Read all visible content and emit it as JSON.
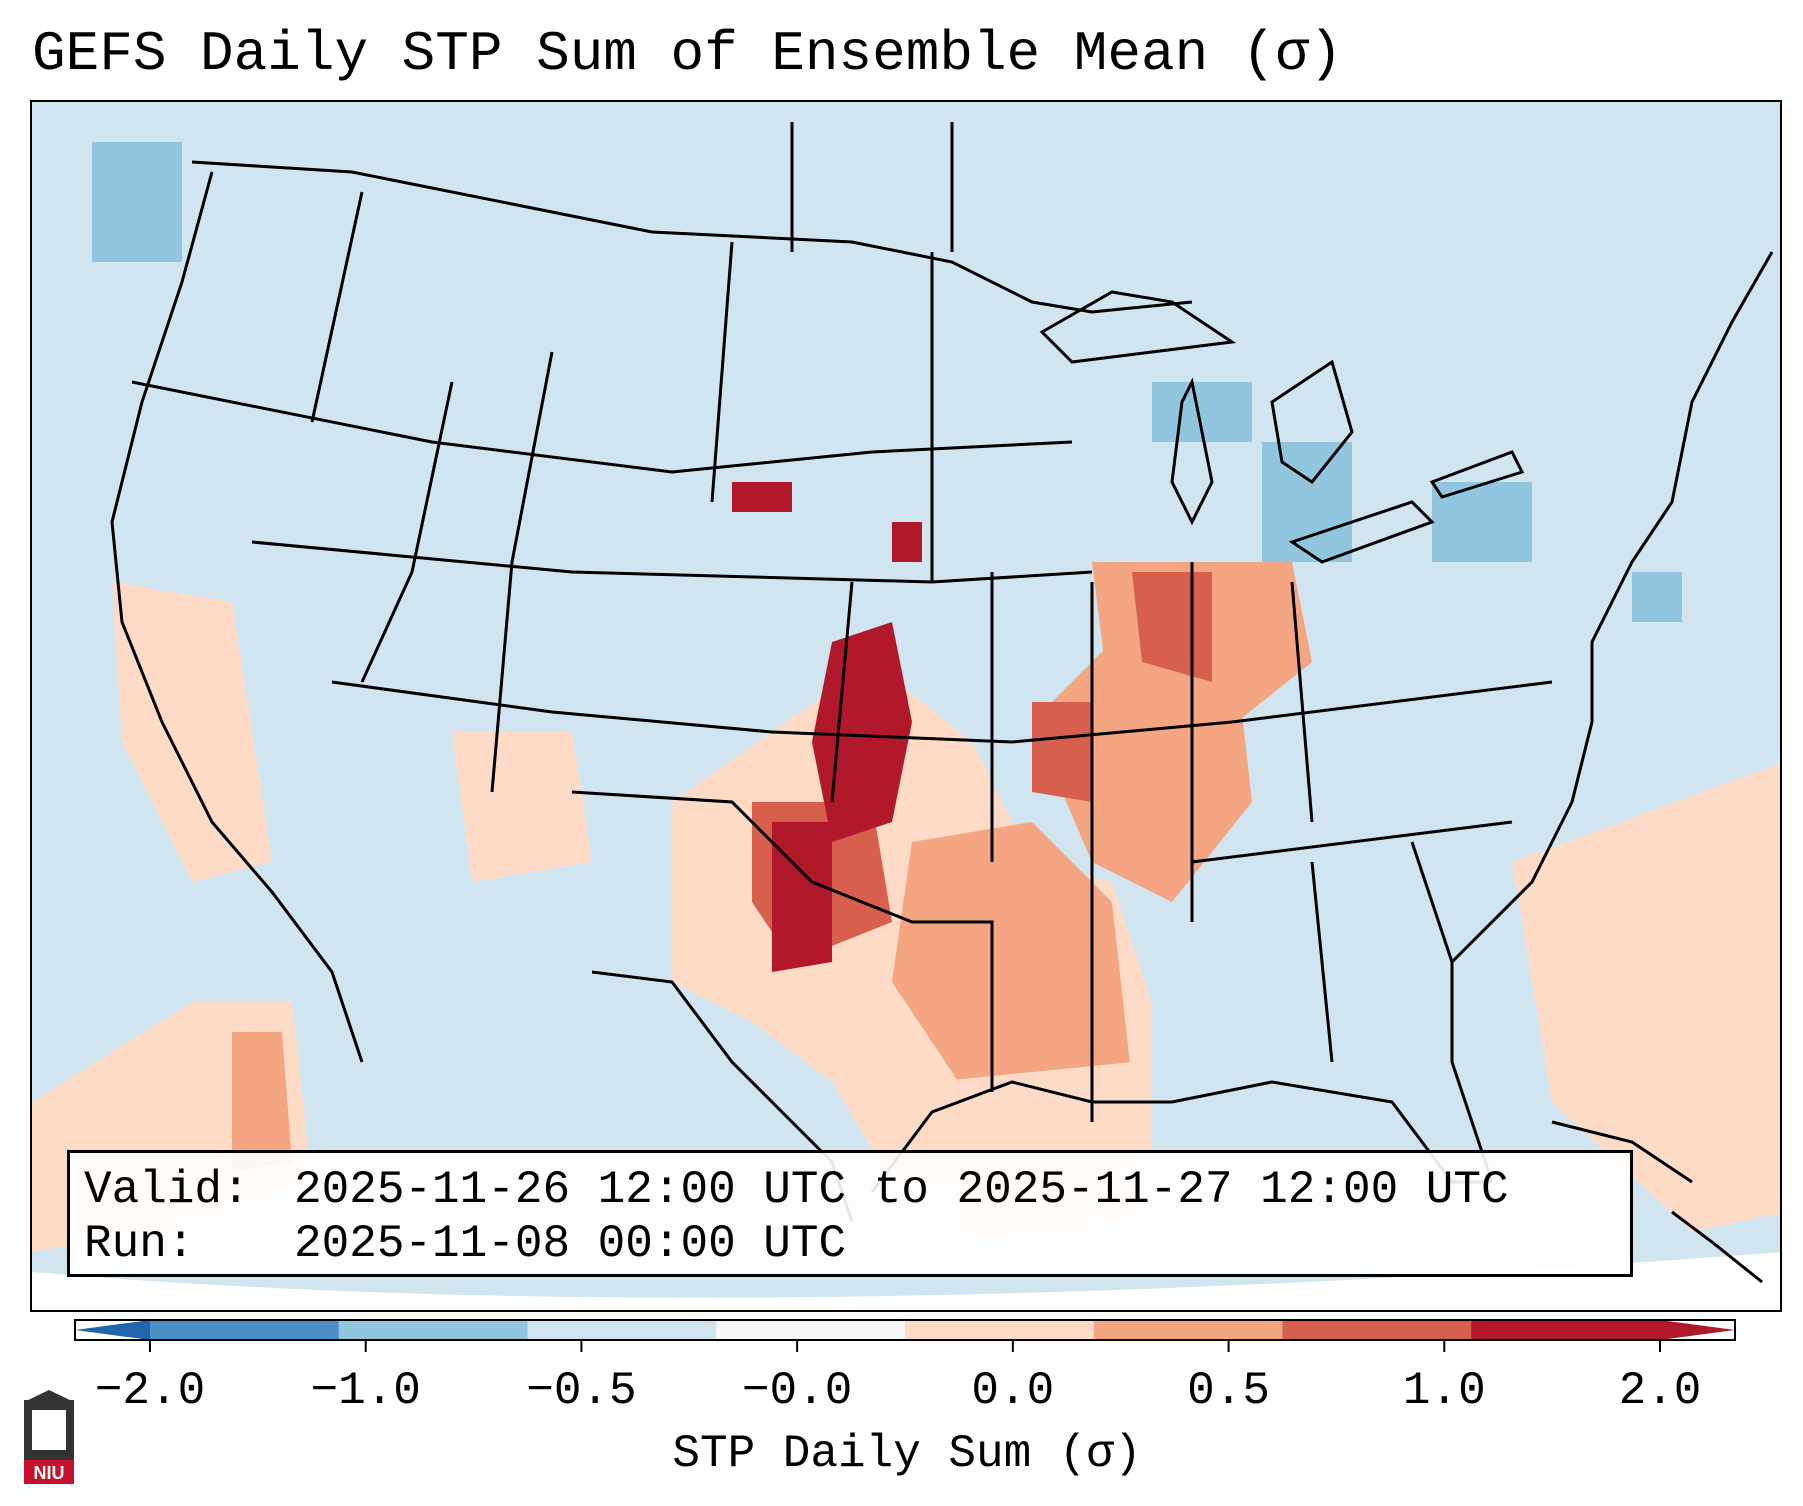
{
  "title": "GEFS Daily STP Sum of Ensemble Mean (σ)",
  "info": {
    "valid_label": "Valid:",
    "valid_value": "2025-11-26 12:00 UTC to 2025-11-27 12:00 UTC",
    "run_label": "Run:",
    "run_value": "2025-11-08 00:00 UTC"
  },
  "colorbar": {
    "label": "STP Daily Sum (σ)",
    "ticks": [
      "−2.0",
      "−1.0",
      "−0.5",
      "−0.0",
      "0.0",
      "0.5",
      "1.0",
      "2.0"
    ],
    "colors": [
      "#4a90c6",
      "#92c5de",
      "#d1e5f0",
      "#f7f7f7",
      "#fddbc7",
      "#f4a582",
      "#d6604d",
      "#b2182b"
    ],
    "extend_low_color": "#2166ac",
    "extend_high_color": "#b2182b"
  },
  "map": {
    "background_color": "#d1e5f0",
    "features": [
      "state-borders",
      "coastlines",
      "great-lakes"
    ]
  },
  "logo": {
    "text": "NIU"
  }
}
